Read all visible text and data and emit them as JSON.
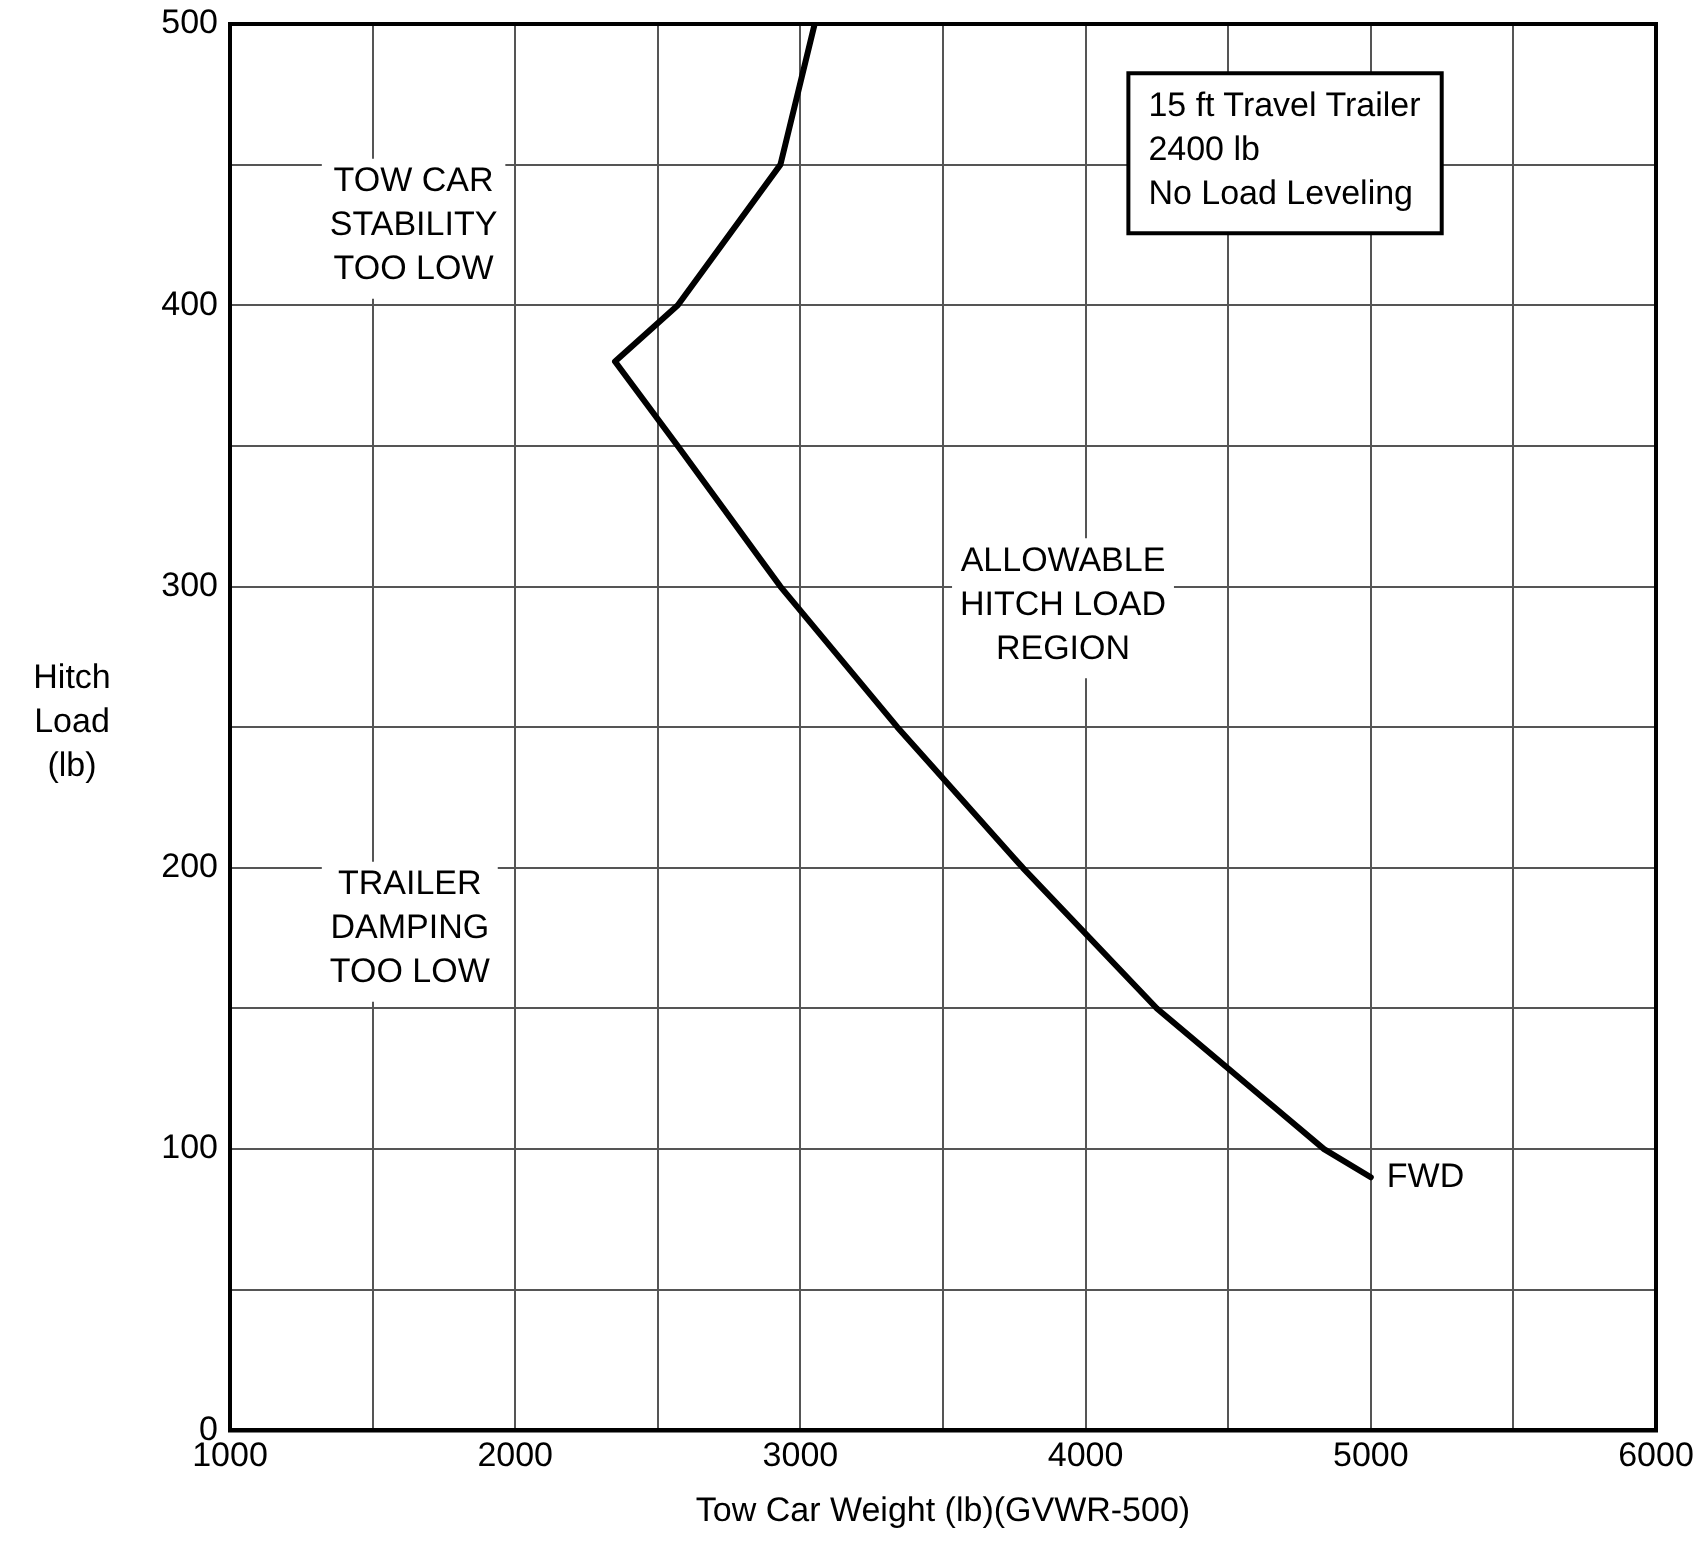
{
  "chart_data": {
    "type": "line",
    "xlabel": "Tow Car Weight (lb)(GVWR-500)",
    "ylabel": "Hitch\nLoad\n(lb)",
    "x": [
      3050,
      2930,
      2570,
      2350,
      2570,
      2930,
      3340,
      3780,
      4250,
      4836,
      5000
    ],
    "series": [
      {
        "color": "#000000",
        "values": [
          500,
          450,
          400,
          380,
          350,
          300,
          250,
          200,
          150,
          100,
          90
        ]
      }
    ],
    "xlim": [
      1000,
      6000
    ],
    "xticks": [
      1000,
      {
        "value": 1500,
        "label": null
      },
      2000,
      {
        "value": 2500,
        "label": null
      },
      3000,
      {
        "value": 3500,
        "label": null
      },
      4000,
      {
        "value": 4500,
        "label": null
      },
      5000,
      {
        "value": 5500,
        "label": null
      },
      6000
    ],
    "ylim": [
      0,
      500
    ],
    "yticks": [
      0,
      {
        "value": 50,
        "label": null
      },
      100,
      {
        "value": 150,
        "label": null
      },
      200,
      {
        "value": 250,
        "label": null
      },
      300,
      {
        "value": 350,
        "label": null
      },
      400,
      {
        "value": 450,
        "label": null
      },
      500
    ],
    "grid": true,
    "legend": false,
    "marker": "none",
    "line_style": "solid",
    "annotations": [
      "15 ft Travel Trailer\n2400 lb\nNo Load Leveling",
      "TOW CAR\nSTABILITY\nTOO LOW",
      "ALLOWABLE\nHITCH LOAD\nREGION",
      "TRAILER\nDAMPING\nTOO LOW",
      {
        "text": "FWD",
        "x": 5000,
        "y": 90
      }
    ]
  }
}
